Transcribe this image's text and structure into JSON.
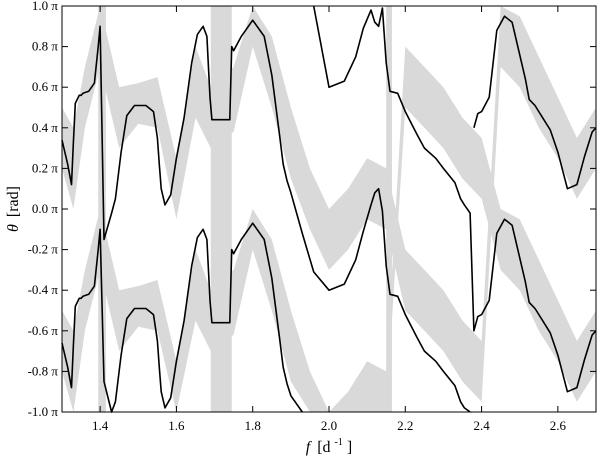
{
  "chart_data": {
    "type": "line",
    "title": "",
    "xlabel": {
      "symbol": "f",
      "unit_base": "[d",
      "unit_sup": "-1",
      "unit_close": "]"
    },
    "ylabel": {
      "symbol": "θ",
      "unit": "[rad]"
    },
    "xlim": [
      1.3,
      2.7
    ],
    "ylim": [
      -1.0,
      1.0
    ],
    "y_unit": "pi",
    "grid": false,
    "x_ticks": [
      {
        "value": 1.4,
        "label": "1.4"
      },
      {
        "value": 1.6,
        "label": "1.6"
      },
      {
        "value": 1.8,
        "label": "1.8"
      },
      {
        "value": 2.0,
        "label": "2.0"
      },
      {
        "value": 2.2,
        "label": "2.2"
      },
      {
        "value": 2.4,
        "label": "2.4"
      },
      {
        "value": 2.6,
        "label": "2.6"
      }
    ],
    "y_ticks": [
      {
        "value": 1.0,
        "label": "1.0 π"
      },
      {
        "value": 0.8,
        "label": "0.8 π"
      },
      {
        "value": 0.6,
        "label": "0.6 π"
      },
      {
        "value": 0.4,
        "label": "0.4 π"
      },
      {
        "value": 0.2,
        "label": "0.2 π"
      },
      {
        "value": 0.0,
        "label": "0.0 π"
      },
      {
        "value": -0.2,
        "label": "-0.2 π"
      },
      {
        "value": -0.4,
        "label": "-0.4 π"
      },
      {
        "value": -0.6,
        "label": "-0.6 π"
      },
      {
        "value": -0.8,
        "label": "-0.8 π"
      },
      {
        "value": -1.0,
        "label": "-1.0 π"
      }
    ],
    "colors": {
      "line": "#000000",
      "band": "#d9d9d9",
      "background": "#ffffff"
    },
    "series": [
      {
        "role": "phase-line",
        "x": [
          1.3,
          1.315,
          1.325,
          1.33,
          1.335,
          1.345,
          1.35,
          1.355,
          1.37,
          1.385,
          1.395,
          1.4,
          1.41,
          1.43,
          1.44,
          1.455,
          1.47,
          1.49,
          1.52,
          1.54,
          1.55,
          1.555,
          1.56,
          1.57,
          1.585,
          1.6,
          1.62,
          1.64,
          1.655,
          1.67,
          1.68,
          1.688,
          1.693,
          1.7,
          1.74,
          1.745,
          1.75,
          1.77,
          1.8,
          1.83,
          1.85,
          1.87,
          1.88,
          1.89,
          1.9,
          1.93,
          1.96,
          2.0,
          2.04,
          2.07,
          2.09,
          2.11,
          2.12,
          2.13,
          2.14,
          2.15,
          2.16,
          2.18,
          2.2,
          2.23,
          2.25,
          2.28,
          2.3,
          2.33,
          2.345,
          2.355,
          2.37,
          2.38,
          2.39,
          2.4,
          2.42,
          2.44,
          2.46,
          2.48,
          2.5,
          2.515,
          2.525,
          2.54,
          2.56,
          2.58,
          2.6,
          2.625,
          2.65,
          2.67,
          2.69,
          2.7
        ],
        "y": [
          0.34,
          0.22,
          0.12,
          0.33,
          0.52,
          0.56,
          0.56,
          0.57,
          0.58,
          0.62,
          0.8,
          0.9,
          -0.15,
          -0.02,
          0.05,
          0.28,
          0.46,
          0.51,
          0.51,
          0.48,
          0.35,
          0.22,
          0.1,
          0.02,
          0.07,
          0.25,
          0.45,
          0.72,
          0.86,
          0.9,
          0.85,
          0.55,
          0.44,
          0.44,
          0.44,
          0.8,
          0.78,
          0.85,
          0.93,
          0.85,
          0.66,
          0.37,
          0.22,
          0.14,
          0.08,
          -0.12,
          -0.31,
          -0.4,
          -0.37,
          -0.25,
          -0.11,
          0.02,
          0.08,
          0.1,
          -0.01,
          -0.28,
          -0.42,
          -0.43,
          -0.52,
          -0.63,
          -0.7,
          -0.75,
          -0.8,
          -0.87,
          -0.95,
          -0.98,
          -1.02,
          0.4,
          0.47,
          0.48,
          0.55,
          0.88,
          0.95,
          0.92,
          0.76,
          0.64,
          0.54,
          0.51,
          0.45,
          0.39,
          0.28,
          0.1,
          0.12,
          0.26,
          0.38,
          0.4
        ]
      },
      {
        "role": "phase-line-offset-pi",
        "x": [
          1.3,
          1.315,
          1.325,
          1.33,
          1.335,
          1.345,
          1.35,
          1.355,
          1.37,
          1.385,
          1.395,
          1.4,
          1.41,
          1.43,
          1.44,
          1.455,
          1.47,
          1.49,
          1.52,
          1.54,
          1.55,
          1.555,
          1.56,
          1.57,
          1.585,
          1.6,
          1.62,
          1.64,
          1.655,
          1.67,
          1.68,
          1.688,
          1.693,
          1.7,
          1.74,
          1.745,
          1.75,
          1.77,
          1.8,
          1.83,
          1.85,
          1.87,
          1.88,
          1.89,
          1.9,
          1.93,
          1.96,
          2.0,
          2.04,
          2.07,
          2.09,
          2.11,
          2.12,
          2.13,
          2.14,
          2.15,
          2.16,
          2.18,
          2.2,
          2.23,
          2.25,
          2.28,
          2.3,
          2.33,
          2.345,
          2.355,
          2.37,
          2.38,
          2.39,
          2.4,
          2.42,
          2.44,
          2.46,
          2.48,
          2.5,
          2.515,
          2.525,
          2.54,
          2.56,
          2.58,
          2.6,
          2.625,
          2.65,
          2.67,
          2.69,
          2.7
        ],
        "y": [
          -0.66,
          -0.78,
          -0.88,
          -0.67,
          -0.48,
          -0.44,
          -0.44,
          -0.43,
          -0.42,
          -0.38,
          -0.2,
          -0.1,
          -0.85,
          -1.02,
          -0.95,
          -0.72,
          -0.54,
          -0.49,
          -0.49,
          -0.52,
          -0.65,
          -0.78,
          -0.9,
          -0.98,
          -0.93,
          -0.75,
          -0.55,
          -0.28,
          -0.14,
          -0.1,
          -0.15,
          -0.45,
          -0.56,
          -0.56,
          -0.56,
          -0.2,
          -0.22,
          -0.15,
          -0.07,
          -0.15,
          -0.34,
          -0.63,
          -0.78,
          -0.86,
          -0.92,
          -1.02,
          1.0,
          0.6,
          0.63,
          0.75,
          0.89,
          0.98,
          0.92,
          0.9,
          0.99,
          0.72,
          0.58,
          0.57,
          0.48,
          0.37,
          0.3,
          0.25,
          0.2,
          0.13,
          0.05,
          0.02,
          -0.02,
          -0.6,
          -0.53,
          -0.52,
          -0.45,
          -0.12,
          -0.05,
          -0.08,
          -0.24,
          -0.36,
          -0.46,
          -0.49,
          -0.55,
          -0.61,
          -0.72,
          -0.9,
          -0.88,
          -0.74,
          -0.62,
          -0.6
        ]
      }
    ],
    "bands": [
      {
        "role": "uncertainty-band",
        "x": [
          1.3,
          1.33,
          1.36,
          1.4,
          1.45,
          1.5,
          1.55,
          1.6,
          1.65,
          1.69,
          1.75,
          1.8,
          1.85,
          1.9,
          1.95,
          2.0,
          2.05,
          2.1,
          2.15,
          2.2,
          2.25,
          2.3,
          2.35,
          2.4,
          2.45,
          2.5,
          2.55,
          2.6,
          2.65,
          2.7
        ],
        "y_low": [
          0.2,
          0.0,
          0.4,
          0.7,
          0.3,
          0.42,
          0.4,
          -0.05,
          0.45,
          0.3,
          0.38,
          0.8,
          0.5,
          0.15,
          -0.1,
          -0.3,
          -0.2,
          -0.05,
          -0.1,
          -0.5,
          -0.6,
          -0.7,
          -0.85,
          -0.95,
          0.7,
          0.6,
          0.4,
          0.25,
          0.05,
          0.2
        ],
        "y_high": [
          0.5,
          0.4,
          0.7,
          1.0,
          0.6,
          0.62,
          0.65,
          0.25,
          0.8,
          0.6,
          0.7,
          1.0,
          0.85,
          0.5,
          0.2,
          0.0,
          0.1,
          0.25,
          0.2,
          -0.2,
          -0.3,
          -0.4,
          -0.55,
          -0.65,
          1.0,
          0.95,
          0.75,
          0.55,
          0.35,
          0.5
        ]
      },
      {
        "role": "uncertainty-band-offset-pi",
        "x": [
          1.3,
          1.33,
          1.36,
          1.4,
          1.45,
          1.5,
          1.55,
          1.6,
          1.65,
          1.69,
          1.75,
          1.8,
          1.85,
          1.9,
          1.95,
          2.0,
          2.05,
          2.1,
          2.15,
          2.2,
          2.25,
          2.3,
          2.35,
          2.4,
          2.45,
          2.5,
          2.55,
          2.6,
          2.65,
          2.7
        ],
        "y_low": [
          -0.8,
          -1.0,
          -0.6,
          -0.3,
          -0.7,
          -0.58,
          -0.6,
          -1.0,
          -0.55,
          -0.7,
          -0.62,
          -0.2,
          -0.5,
          -0.85,
          -1.0,
          -1.0,
          -1.0,
          -1.0,
          -1.0,
          0.5,
          0.4,
          0.3,
          0.15,
          0.05,
          -0.3,
          -0.4,
          -0.6,
          -0.75,
          -0.95,
          -0.8
        ],
        "y_high": [
          -0.5,
          -0.6,
          -0.3,
          0.0,
          -0.4,
          -0.38,
          -0.35,
          -0.75,
          -0.2,
          -0.4,
          -0.3,
          0.0,
          -0.15,
          -0.5,
          -0.8,
          -1.0,
          -0.9,
          -0.75,
          -0.8,
          0.8,
          0.7,
          0.6,
          0.45,
          0.35,
          0.0,
          -0.05,
          -0.25,
          -0.45,
          -0.65,
          -0.5
        ]
      },
      {
        "role": "vertical-band",
        "x_range": [
          1.395,
          1.415
        ]
      },
      {
        "role": "vertical-band",
        "x_range": [
          1.69,
          1.745
        ]
      },
      {
        "role": "vertical-band",
        "x_range": [
          2.15,
          2.165
        ]
      }
    ]
  }
}
